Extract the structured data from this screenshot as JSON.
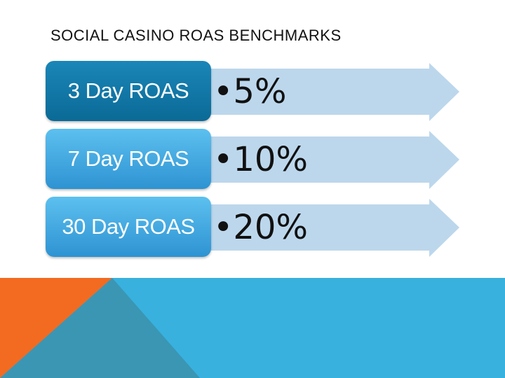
{
  "slide": {
    "title": "SOCIAL CASINO ROAS BENCHMARKS",
    "items": [
      {
        "label": "3 Day  ROAS",
        "value": "•5%",
        "style": "dark"
      },
      {
        "label": "7 Day ROAS",
        "value": "•10%",
        "style": "light"
      },
      {
        "label": "30 Day ROAS",
        "value": "•20%",
        "style": "light"
      }
    ]
  },
  "colors": {
    "arrow": "#bcd7ec",
    "label_dark": "#0e6f9e",
    "label_light": "#3ea7e2",
    "band_blue": "#38b1de",
    "band_orange": "#f26b21",
    "band_teal": "#3b96b4"
  }
}
